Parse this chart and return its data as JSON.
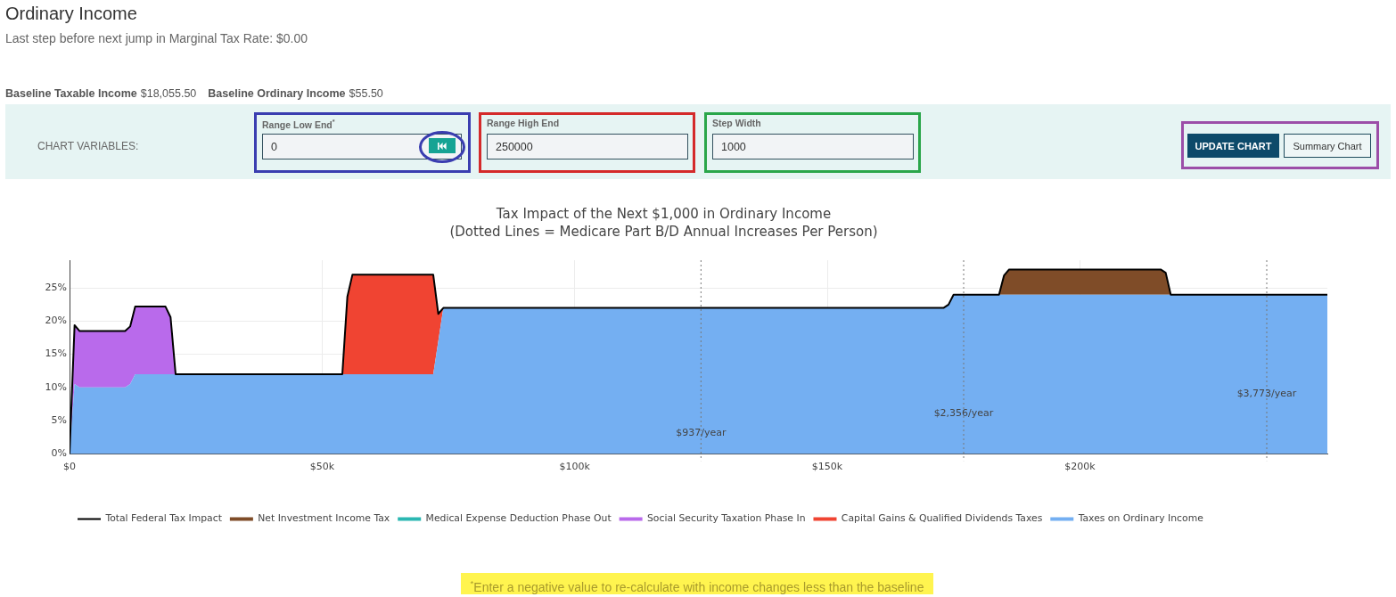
{
  "chart_data": {
    "type": "area",
    "title": "Tax Impact of the Next $1,000 in Ordinary Income",
    "subtitle": "(Dotted Lines = Medicare Part B/D Annual Increases Per Person)",
    "x": [
      0,
      1000,
      2000,
      11000,
      12000,
      13000,
      19000,
      20000,
      21000,
      54000,
      55000,
      56000,
      72000,
      73000,
      74000,
      173000,
      174000,
      175000,
      184000,
      185000,
      186000,
      216000,
      217000,
      218000,
      249000
    ],
    "series": [
      {
        "name": "Total Federal Tax Impact",
        "type": "line",
        "color": "#000000",
        "values": [
          0,
          19.4,
          18.5,
          18.5,
          19.2,
          22.2,
          22.2,
          20.6,
          12,
          12,
          23.7,
          27,
          27,
          21.1,
          22,
          22,
          22.5,
          24,
          24,
          26.9,
          27.8,
          27.8,
          27.3,
          24,
          24
        ]
      },
      {
        "name": "Taxes on Ordinary Income",
        "color": "#74aff2",
        "values": [
          0,
          10.5,
          10,
          10,
          10.5,
          12,
          12,
          12,
          12,
          12,
          12,
          12,
          12,
          17,
          22,
          22,
          22.5,
          24,
          24,
          24,
          24,
          24,
          24,
          24,
          24
        ]
      },
      {
        "name": "Capital Gains & Qualified Dividends Taxes",
        "color": "#f04432",
        "values": [
          0,
          0,
          0,
          0,
          0,
          0,
          0,
          0,
          0,
          0,
          11.7,
          15,
          15,
          4.1,
          0,
          0,
          0,
          0,
          0,
          0,
          0,
          0,
          0,
          0,
          0
        ]
      },
      {
        "name": "Social Security Taxation Phase In",
        "color": "#b96aeb",
        "values": [
          0,
          8.9,
          8.5,
          8.5,
          8.7,
          10.2,
          10.2,
          8.6,
          0,
          null,
          null,
          null,
          null,
          null,
          null,
          null,
          null,
          null,
          null,
          null,
          null,
          null,
          null,
          null,
          null
        ]
      },
      {
        "name": "Medical Expense Deduction Phase Out",
        "color": "#2bb7b2",
        "values": [
          null,
          null,
          null,
          null,
          null,
          null,
          null,
          null,
          null,
          null,
          null,
          null,
          null,
          null,
          null,
          null,
          null,
          null,
          null,
          null,
          null,
          null,
          null,
          null,
          null
        ]
      },
      {
        "name": "Net Investment Income Tax",
        "color": "#7f4c28",
        "values": [
          null,
          null,
          null,
          null,
          null,
          null,
          null,
          null,
          null,
          null,
          null,
          null,
          null,
          null,
          null,
          null,
          null,
          null,
          0,
          2.9,
          3.8,
          3.8,
          3.3,
          0,
          null
        ]
      }
    ],
    "stacked": true,
    "xlim": [
      0,
      249000
    ],
    "xticks": [
      {
        "value": 0,
        "label": "$0"
      },
      {
        "value": 50000,
        "label": "$50k"
      },
      {
        "value": 100000,
        "label": "$100k"
      },
      {
        "value": 150000,
        "label": "$150k"
      },
      {
        "value": 200000,
        "label": "$200k"
      }
    ],
    "ylim": [
      0,
      29.2
    ],
    "yticks": [
      {
        "value": 0,
        "label": "0%"
      },
      {
        "value": 5,
        "label": "5%"
      },
      {
        "value": 10,
        "label": "10%"
      },
      {
        "value": 15,
        "label": "15%"
      },
      {
        "value": 20,
        "label": "20%"
      },
      {
        "value": 25,
        "label": "25%"
      }
    ],
    "grid": true,
    "legend": "bottom",
    "ref_lines": [
      {
        "axis": "x",
        "value": 125000,
        "label": "$937/year",
        "color": "#777777",
        "line_style": "dotted"
      },
      {
        "axis": "x",
        "value": 177000,
        "label": "$2,356/year",
        "color": "#777777",
        "line_style": "dotted"
      },
      {
        "axis": "x",
        "value": 237000,
        "label": "$3,773/year",
        "color": "#777777",
        "line_style": "dotted"
      }
    ],
    "annotations": [
      "Ordinary Income",
      "Last step before next jump in Marginal Tax Rate: $0.00",
      "Baseline Taxable Income",
      "$18,055.50",
      "Baseline Ordinary Income",
      "$55.50",
      "CHART VARIABLES:",
      "Range Low End$^{*}$",
      "0",
      "Range High End",
      "250000",
      "Step Width",
      "1000",
      "UPDATE CHART",
      "Summary Chart",
      "$^{*}$Enter a negative value to re-calculate with income changes less than the baseline"
    ]
  }
}
